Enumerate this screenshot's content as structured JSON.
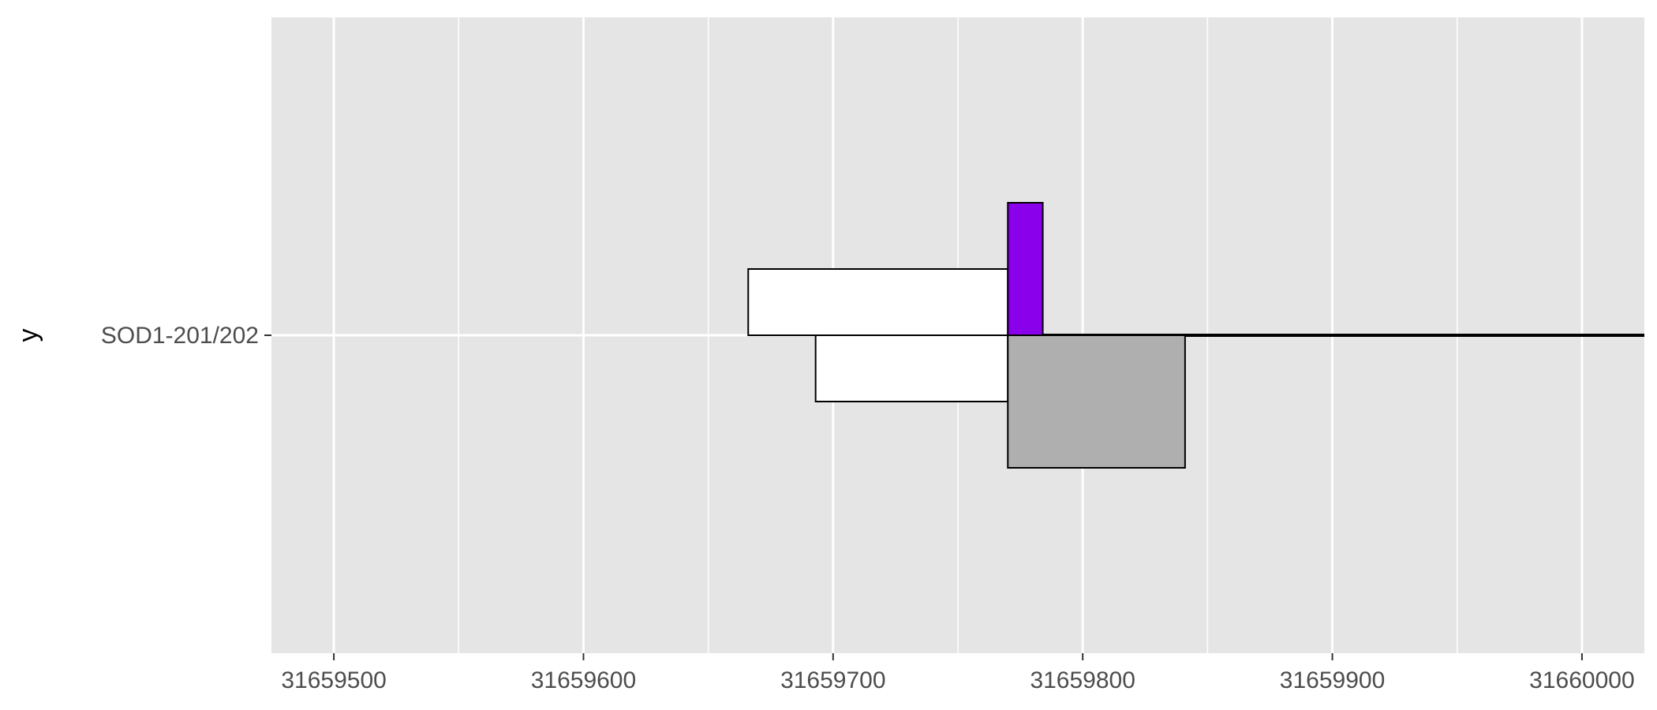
{
  "chart_data": {
    "type": "bar",
    "title": "",
    "xlabel": "",
    "ylabel": "y",
    "xlim": [
      31659475,
      31660025
    ],
    "x_ticks": [
      31659500,
      31659600,
      31659700,
      31659800,
      31659900,
      31660000
    ],
    "y_categories": [
      "SOD1-201/202"
    ],
    "grid": true,
    "legend": "none",
    "features": [
      {
        "name": "white-upper",
        "start": 31659666,
        "end": 31659770,
        "row_from": 0.0,
        "row_to": 0.5,
        "fill": "#ffffff"
      },
      {
        "name": "purple",
        "start": 31659770,
        "end": 31659784,
        "row_from": 0.0,
        "row_to": 1.0,
        "fill": "#8a00ea"
      },
      {
        "name": "white-lower",
        "start": 31659693,
        "end": 31659770,
        "row_from": 0.0,
        "row_to": -0.5,
        "fill": "#ffffff"
      },
      {
        "name": "gray",
        "start": 31659770,
        "end": 31659841,
        "row_from": 0.0,
        "row_to": -1.0,
        "fill": "#afafaf"
      }
    ],
    "baseline": {
      "start": 31659784,
      "end": 31660025
    }
  },
  "colors": {
    "panel_background": "#e5e5e5",
    "grid_line": "#ffffff",
    "tick_text": "#4d4d4d",
    "outline": "#000000"
  }
}
